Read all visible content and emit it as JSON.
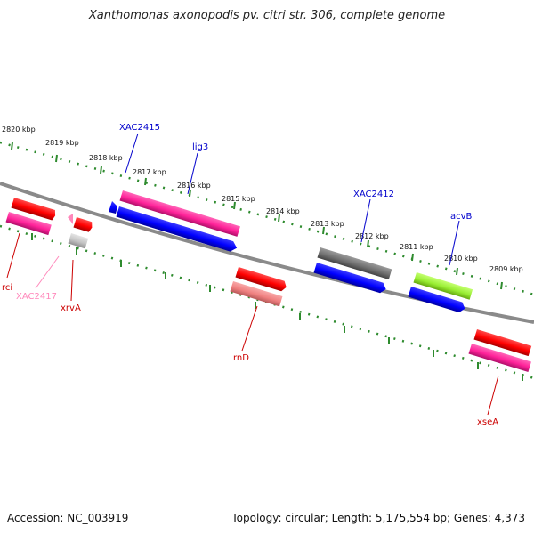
{
  "title": "Xanthomonas axonopodis pv. citri str. 306, complete genome",
  "footer": {
    "accession": "Accession: NC_003919",
    "summary": "Topology: circular; Length: 5,175,554 bp; Genes: 4,373"
  },
  "scale_labels": [
    "2820 kbp",
    "2819 kbp",
    "2818 kbp",
    "2817 kbp",
    "2816 kbp",
    "2815 kbp",
    "2814 kbp",
    "2813 kbp",
    "2812 kbp",
    "2811 kbp",
    "2810 kbp",
    "2809 kbp"
  ],
  "gene_labels": {
    "rci": "rci",
    "xac2417": "XAC2417",
    "xrva": "xrvA",
    "xac2415": "XAC2415",
    "lig3": "lig3",
    "rnd": "rnD",
    "xac2412": "XAC2412",
    "acvb": "acvB",
    "xsea": "xseA"
  },
  "colors": {
    "backbone": "#808080",
    "ticks": "#2e8b2e",
    "red": "#ff0000",
    "pink": "#ff2299",
    "blue": "#0000ff",
    "gray": "#777777",
    "lightgray": "#c8c8c8",
    "salmon": "#f08080",
    "lime": "#99ee33",
    "label_blue": "#0000cc",
    "label_red": "#cc0000",
    "label_pink": "#ff88bb"
  }
}
